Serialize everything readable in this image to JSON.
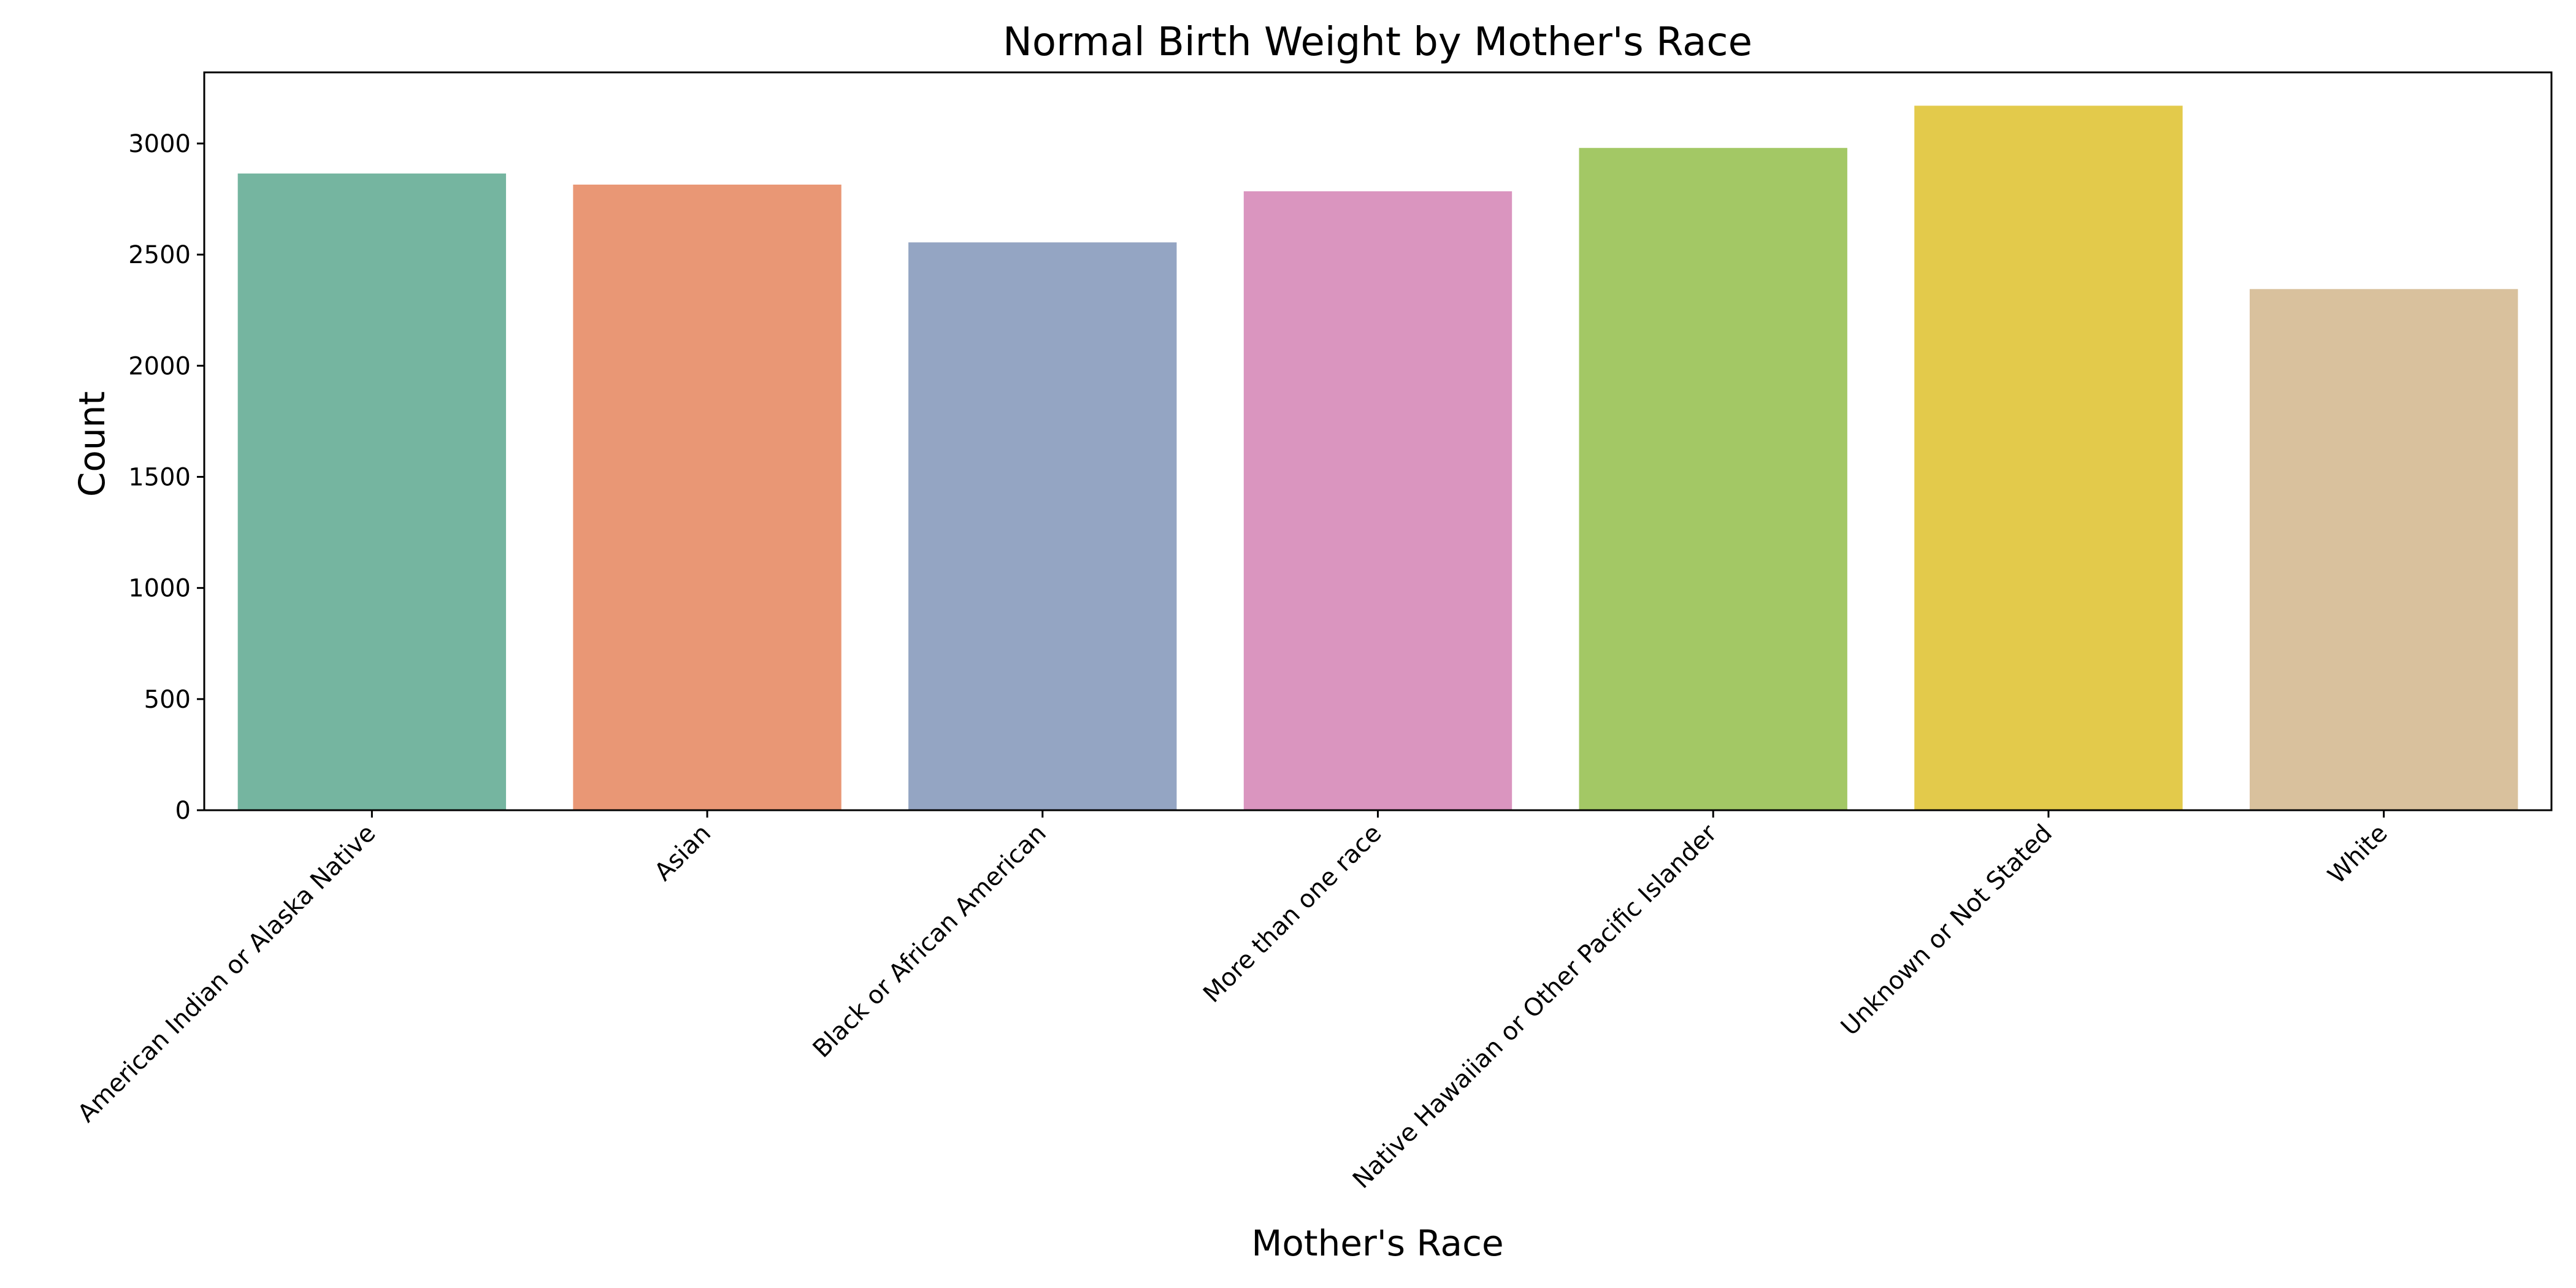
{
  "chart_data": {
    "type": "bar",
    "title": "Normal Birth Weight by Mother's Race",
    "xlabel": "Mother's Race",
    "ylabel": "Count",
    "categories": [
      "American Indian or Alaska Native",
      "Asian",
      "Black or African American",
      "More than one race",
      "Native Hawaiian or Other Pacific Islander",
      "Unknown or Not Stated",
      "White"
    ],
    "values": [
      2865,
      2815,
      2555,
      2785,
      2980,
      3170,
      2345
    ],
    "colors": [
      "#75b5a0",
      "#e99775",
      "#94a5c3",
      "#da95bf",
      "#a3c865",
      "#e3ca4b",
      "#d9c19d"
    ],
    "ylim": [
      0,
      3320
    ],
    "yticks": [
      0,
      500,
      1000,
      1500,
      2000,
      2500,
      3000
    ],
    "grid": false,
    "legend": "none"
  }
}
